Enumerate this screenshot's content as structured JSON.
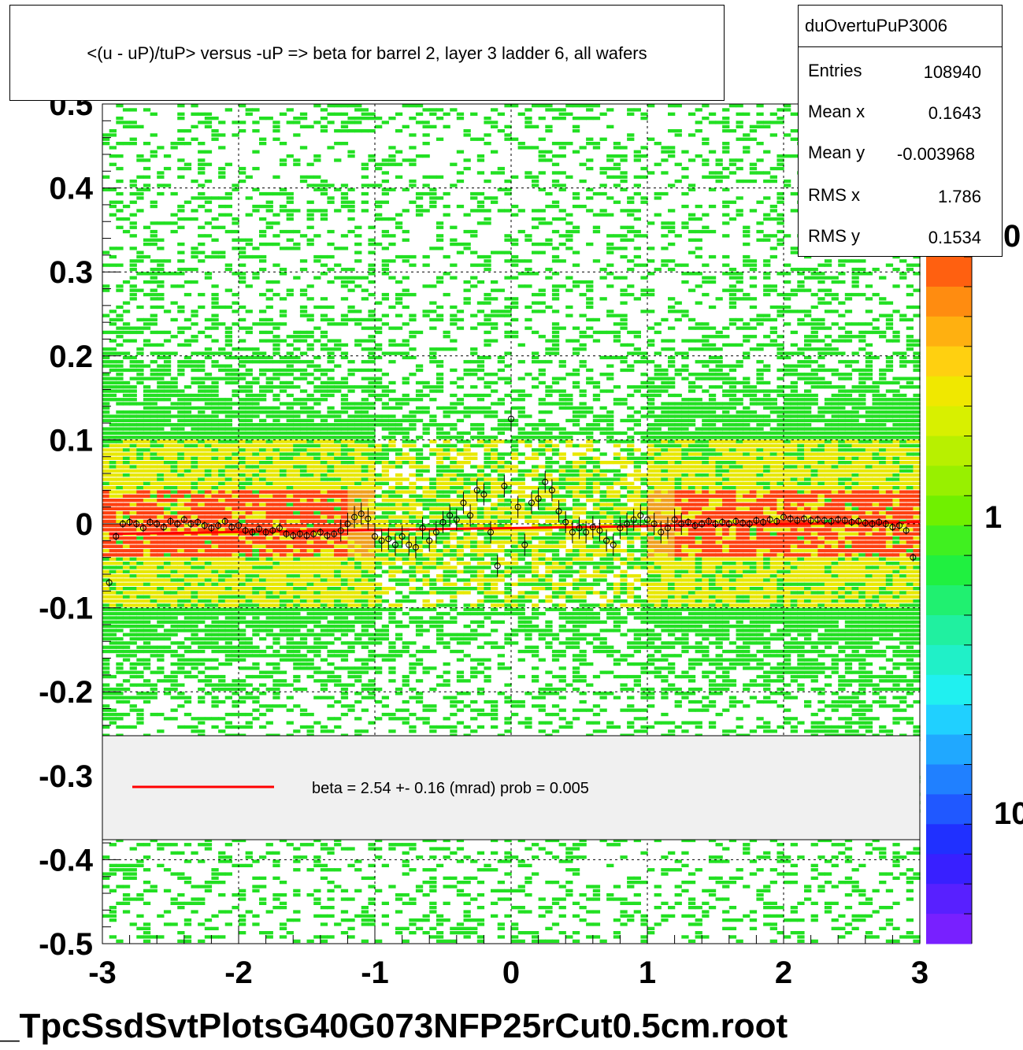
{
  "chart_data": {
    "type": "heatmap",
    "title": "<(u - uP)/tuP> versus  -uP => beta for barrel 2, layer 3 ladder 6, all wafers",
    "xlabel": "",
    "ylabel": "",
    "xlim": [
      -3,
      3
    ],
    "ylim": [
      -0.5,
      0.5
    ],
    "x_ticks": [
      "-3",
      "-2",
      "-1",
      "0",
      "1",
      "2",
      "3"
    ],
    "y_ticks": [
      "-0.5",
      "-0.4",
      "-0.3",
      "-0.2",
      "-0.1",
      "0",
      "0.1",
      "0.2",
      "0.3",
      "0.4",
      "0.5"
    ],
    "z_ticks": [
      "1",
      "10"
    ],
    "z_tick_partial": "0",
    "grid": true,
    "stats": {
      "name": "duOvertuPuP3006",
      "rows": [
        {
          "label": "Entries",
          "value": "108940"
        },
        {
          "label": "Mean x",
          "value": "0.1643"
        },
        {
          "label": "Mean y",
          "value": "-0.003968"
        },
        {
          "label": "RMS x",
          "value": "1.786"
        },
        {
          "label": "RMS y",
          "value": "0.1534"
        }
      ]
    },
    "fit": {
      "legend": "beta =    2.54 +-  0.16 (mrad) prob = 0.005",
      "color": "#ff0000",
      "x": [
        -2.95,
        3.0
      ],
      "y": [
        -0.012,
        0.002
      ]
    },
    "profile_points": [
      [
        -2.95,
        -0.07
      ],
      [
        -2.9,
        -0.015
      ],
      [
        -2.85,
        0.0
      ],
      [
        -2.8,
        0.002
      ],
      [
        -2.75,
        0.0
      ],
      [
        -2.7,
        -0.005
      ],
      [
        -2.65,
        0.002
      ],
      [
        -2.6,
        0.0
      ],
      [
        -2.55,
        -0.004
      ],
      [
        -2.5,
        0.003
      ],
      [
        -2.45,
        0.0
      ],
      [
        -2.4,
        0.005
      ],
      [
        -2.35,
        0.0
      ],
      [
        -2.3,
        0.002
      ],
      [
        -2.25,
        -0.002
      ],
      [
        -2.2,
        -0.005
      ],
      [
        -2.15,
        -0.002
      ],
      [
        -2.1,
        0.003
      ],
      [
        -2.05,
        -0.004
      ],
      [
        -2.0,
        -0.002
      ],
      [
        -1.95,
        -0.008
      ],
      [
        -1.9,
        -0.01
      ],
      [
        -1.85,
        -0.006
      ],
      [
        -1.8,
        -0.01
      ],
      [
        -1.75,
        -0.008
      ],
      [
        -1.7,
        -0.005
      ],
      [
        -1.65,
        -0.012
      ],
      [
        -1.6,
        -0.014
      ],
      [
        -1.55,
        -0.012
      ],
      [
        -1.5,
        -0.014
      ],
      [
        -1.45,
        -0.012
      ],
      [
        -1.4,
        -0.01
      ],
      [
        -1.35,
        -0.014
      ],
      [
        -1.3,
        -0.012
      ],
      [
        -1.25,
        -0.008
      ],
      [
        -1.2,
        0.0
      ],
      [
        -1.15,
        0.008
      ],
      [
        -1.1,
        0.012
      ],
      [
        -1.05,
        0.006
      ],
      [
        -1.0,
        -0.015
      ],
      [
        -0.95,
        -0.02
      ],
      [
        -0.9,
        -0.018
      ],
      [
        -0.85,
        -0.025
      ],
      [
        -0.8,
        -0.015
      ],
      [
        -0.75,
        -0.025
      ],
      [
        -0.7,
        -0.028
      ],
      [
        -0.65,
        -0.005
      ],
      [
        -0.6,
        -0.02
      ],
      [
        -0.55,
        -0.01
      ],
      [
        -0.5,
        0.002
      ],
      [
        -0.45,
        0.01
      ],
      [
        -0.4,
        0.005
      ],
      [
        -0.35,
        0.025
      ],
      [
        -0.3,
        0.01
      ],
      [
        -0.25,
        0.04
      ],
      [
        -0.2,
        0.035
      ],
      [
        -0.15,
        -0.01
      ],
      [
        -0.1,
        -0.05
      ],
      [
        -0.05,
        0.045
      ],
      [
        0.0,
        0.125
      ],
      [
        0.05,
        0.02
      ],
      [
        0.1,
        -0.025
      ],
      [
        0.15,
        0.025
      ],
      [
        0.2,
        0.03
      ],
      [
        0.25,
        0.05
      ],
      [
        0.3,
        0.04
      ],
      [
        0.35,
        0.015
      ],
      [
        0.4,
        0.002
      ],
      [
        0.45,
        -0.01
      ],
      [
        0.5,
        -0.005
      ],
      [
        0.55,
        -0.01
      ],
      [
        0.6,
        -0.004
      ],
      [
        0.65,
        -0.008
      ],
      [
        0.7,
        -0.02
      ],
      [
        0.75,
        -0.025
      ],
      [
        0.8,
        -0.005
      ],
      [
        0.85,
        0.0
      ],
      [
        0.9,
        0.005
      ],
      [
        0.95,
        0.01
      ],
      [
        1.0,
        0.005
      ],
      [
        1.05,
        0.0
      ],
      [
        1.1,
        -0.01
      ],
      [
        1.15,
        -0.005
      ],
      [
        1.2,
        0.005
      ],
      [
        1.25,
        0.0
      ],
      [
        1.3,
        0.002
      ],
      [
        1.35,
        -0.002
      ],
      [
        1.4,
        0.0
      ],
      [
        1.45,
        0.003
      ],
      [
        1.5,
        0.0
      ],
      [
        1.55,
        0.002
      ],
      [
        1.6,
        0.0
      ],
      [
        1.65,
        0.003
      ],
      [
        1.7,
        0.001
      ],
      [
        1.75,
        0.0
      ],
      [
        1.8,
        0.004
      ],
      [
        1.85,
        0.002
      ],
      [
        1.9,
        0.005
      ],
      [
        1.95,
        0.003
      ],
      [
        2.0,
        0.008
      ],
      [
        2.05,
        0.006
      ],
      [
        2.1,
        0.004
      ],
      [
        2.15,
        0.006
      ],
      [
        2.2,
        0.004
      ],
      [
        2.25,
        0.005
      ],
      [
        2.3,
        0.004
      ],
      [
        2.35,
        0.003
      ],
      [
        2.4,
        0.005
      ],
      [
        2.45,
        0.004
      ],
      [
        2.5,
        0.002
      ],
      [
        2.55,
        0.003
      ],
      [
        2.6,
        0.001
      ],
      [
        2.65,
        0.0
      ],
      [
        2.7,
        0.002
      ],
      [
        2.75,
        0.0
      ],
      [
        2.8,
        -0.004
      ],
      [
        2.85,
        -0.002
      ],
      [
        2.9,
        -0.008
      ],
      [
        2.95,
        -0.04
      ]
    ],
    "colors": {
      "low": "#22e022",
      "mid": "#e8e800",
      "high": "#ff4010",
      "legend_bg": "#f0f0f0"
    }
  },
  "footer": {
    "file": "_TpcSsdSvtPlotsG40G073NFP25rCut0.5cm.root"
  }
}
